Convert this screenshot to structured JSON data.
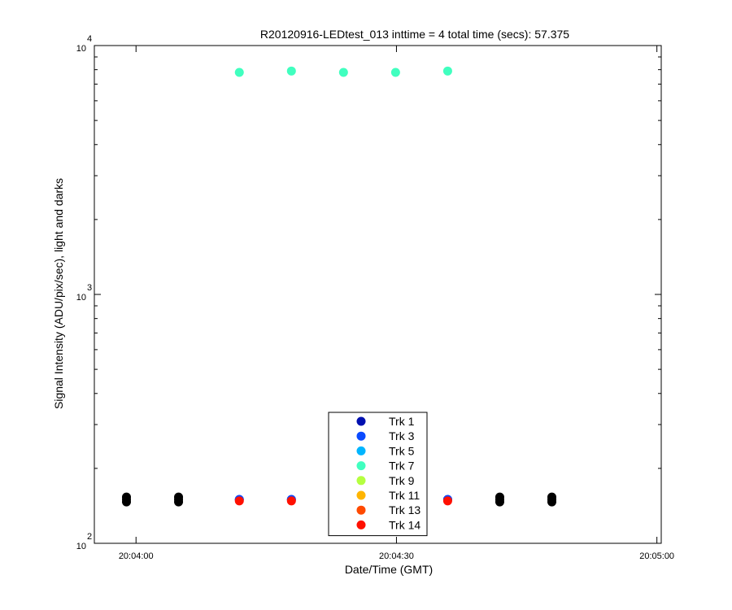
{
  "chart_data": {
    "type": "scatter",
    "title": "R20120916-LEDtest_013 inttime = 4 total time (secs): 57.375",
    "xlabel": "Date/Time (GMT)",
    "ylabel": "Signal Intensity (ADU/pix/sec), light and darks",
    "x_tick_labels": [
      "20:04:00",
      "20:04:30",
      "20:05:00"
    ],
    "x_tick_seconds": [
      0,
      30,
      60
    ],
    "xlim_seconds": [
      -4.8,
      60.5
    ],
    "y_scale": "log",
    "ylim": [
      100,
      10000
    ],
    "y_ticks": [
      {
        "value": 100,
        "base": "10",
        "exp": "2"
      },
      {
        "value": 1000,
        "base": "10",
        "exp": "3"
      },
      {
        "value": 10000,
        "base": "10",
        "exp": "4"
      }
    ],
    "legend_position": "bottom-center",
    "series": [
      {
        "name": "Trk 1",
        "color": "#0010b0",
        "x": [
          11.9,
          17.9,
          35.9
        ],
        "y": [
          150,
          150,
          150
        ]
      },
      {
        "name": "Trk 3",
        "color": "#0a4aff",
        "x": [
          11.9,
          17.9,
          35.9
        ],
        "y": [
          150,
          150,
          150
        ]
      },
      {
        "name": "Trk 5",
        "color": "#00b5ff",
        "x": [],
        "y": []
      },
      {
        "name": "Trk 7",
        "color": "#40ffbf",
        "x": [
          11.9,
          17.9,
          23.9,
          29.9,
          35.9
        ],
        "y": [
          7800,
          7900,
          7800,
          7800,
          7900
        ]
      },
      {
        "name": "Trk 9",
        "color": "#b5ff40",
        "x": [],
        "y": []
      },
      {
        "name": "Trk 11",
        "color": "#ffb500",
        "x": [],
        "y": []
      },
      {
        "name": "Trk 13",
        "color": "#ff4a00",
        "x": [],
        "y": []
      },
      {
        "name": "Trk 14",
        "color": "#ff1000",
        "x": [
          11.9,
          17.9,
          35.9
        ],
        "y": [
          148,
          148,
          148
        ]
      }
    ],
    "dark_points": {
      "color": "#000000",
      "x": [
        -1.1,
        4.9,
        41.9,
        47.9
      ],
      "y": [
        150,
        150,
        150,
        150
      ]
    }
  }
}
